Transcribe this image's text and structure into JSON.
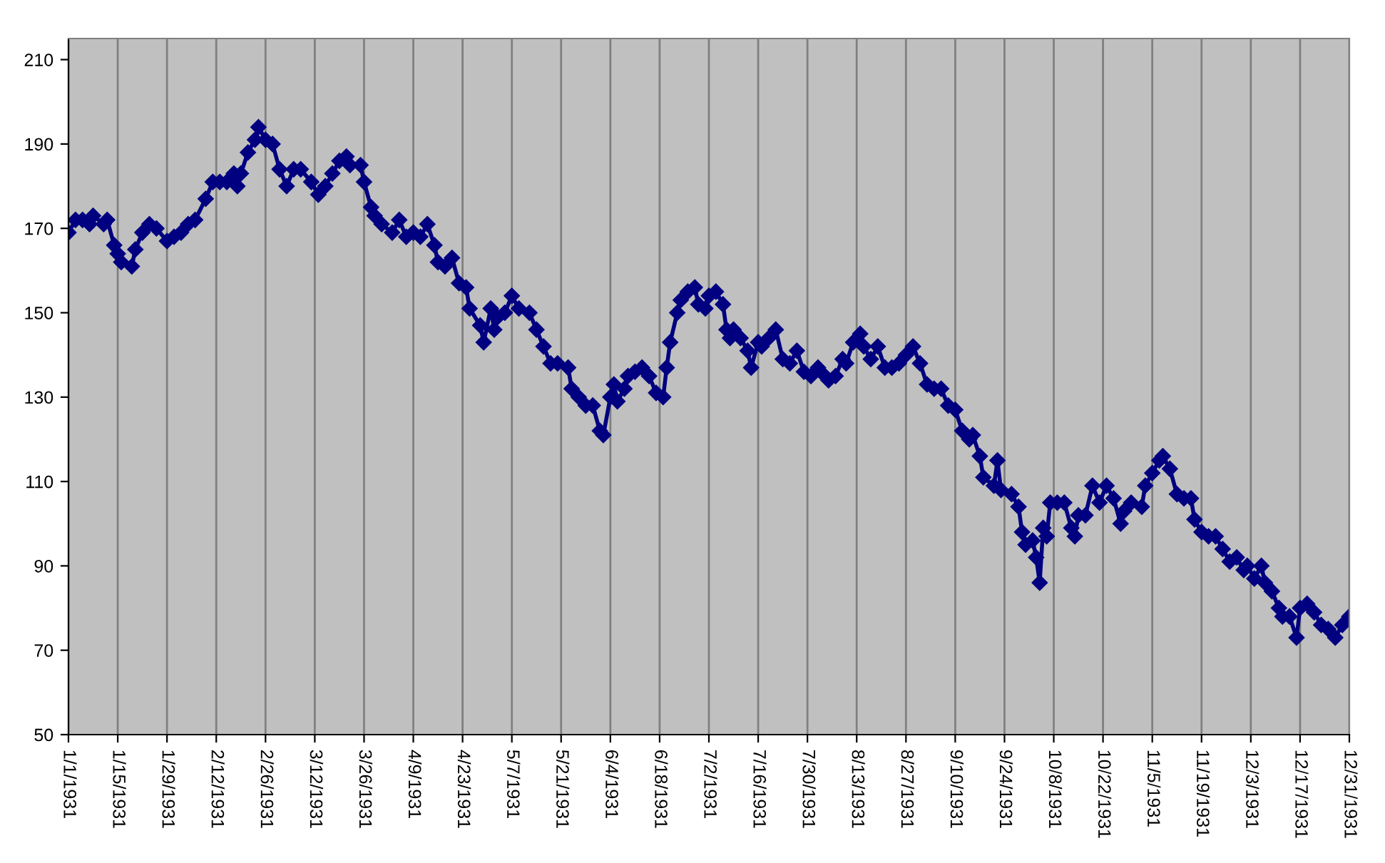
{
  "chart_data": {
    "type": "line",
    "x": [
      "1931-01-01",
      "1931-01-03",
      "1931-01-05",
      "1931-01-07",
      "1931-01-08",
      "1931-01-11",
      "1931-01-12",
      "1931-01-14",
      "1931-01-15",
      "1931-01-16",
      "1931-01-19",
      "1931-01-20",
      "1931-01-22",
      "1931-01-24",
      "1931-01-26",
      "1931-01-29",
      "1931-01-31",
      "1931-02-02",
      "1931-02-04",
      "1931-02-06",
      "1931-02-09",
      "1931-02-11",
      "1931-02-13",
      "1931-02-15",
      "1931-02-17",
      "1931-02-18",
      "1931-02-19",
      "1931-02-21",
      "1931-02-23",
      "1931-02-24",
      "1931-02-26",
      "1931-02-28",
      "1931-03-02",
      "1931-03-04",
      "1931-03-06",
      "1931-03-08",
      "1931-03-11",
      "1931-03-13",
      "1931-03-15",
      "1931-03-17",
      "1931-03-19",
      "1931-03-21",
      "1931-03-22",
      "1931-03-25",
      "1931-03-26",
      "1931-03-28",
      "1931-03-29",
      "1931-03-31",
      "1931-04-03",
      "1931-04-05",
      "1931-04-07",
      "1931-04-09",
      "1931-04-11",
      "1931-04-13",
      "1931-04-15",
      "1931-04-16",
      "1931-04-18",
      "1931-04-20",
      "1931-04-22",
      "1931-04-24",
      "1931-04-25",
      "1931-04-28",
      "1931-04-29",
      "1931-05-01",
      "1931-05-02",
      "1931-05-03",
      "1931-05-05",
      "1931-05-07",
      "1931-05-09",
      "1931-05-12",
      "1931-05-14",
      "1931-05-16",
      "1931-05-18",
      "1931-05-20",
      "1931-05-23",
      "1931-05-24",
      "1931-05-26",
      "1931-05-28",
      "1931-05-30",
      "1931-06-01",
      "1931-06-02",
      "1931-06-04",
      "1931-06-05",
      "1931-06-06",
      "1931-06-08",
      "1931-06-09",
      "1931-06-11",
      "1931-06-13",
      "1931-06-15",
      "1931-06-17",
      "1931-06-19",
      "1931-06-20",
      "1931-06-21",
      "1931-06-23",
      "1931-06-24",
      "1931-06-26",
      "1931-06-28",
      "1931-06-29",
      "1931-07-01",
      "1931-07-02",
      "1931-07-04",
      "1931-07-06",
      "1931-07-07",
      "1931-07-08",
      "1931-07-09",
      "1931-07-11",
      "1931-07-13",
      "1931-07-14",
      "1931-07-16",
      "1931-07-17",
      "1931-07-19",
      "1931-07-21",
      "1931-07-23",
      "1931-07-25",
      "1931-07-27",
      "1931-07-29",
      "1931-07-31",
      "1931-08-02",
      "1931-08-04",
      "1931-08-05",
      "1931-08-07",
      "1931-08-09",
      "1931-08-10",
      "1931-08-12",
      "1931-08-14",
      "1931-08-15",
      "1931-08-17",
      "1931-08-19",
      "1931-08-21",
      "1931-08-23",
      "1931-08-25",
      "1931-08-27",
      "1931-08-29",
      "1931-08-31",
      "1931-09-02",
      "1931-09-04",
      "1931-09-06",
      "1931-09-08",
      "1931-09-10",
      "1931-09-12",
      "1931-09-14",
      "1931-09-15",
      "1931-09-17",
      "1931-09-18",
      "1931-09-21",
      "1931-09-22",
      "1931-09-23",
      "1931-09-26",
      "1931-09-28",
      "1931-09-29",
      "1931-09-30",
      "1931-10-02",
      "1931-10-03",
      "1931-10-04",
      "1931-10-05",
      "1931-10-06",
      "1931-10-07",
      "1931-10-09",
      "1931-10-11",
      "1931-10-13",
      "1931-10-14",
      "1931-10-15",
      "1931-10-17",
      "1931-10-19",
      "1931-10-21",
      "1931-10-23",
      "1931-10-25",
      "1931-10-27",
      "1931-10-28",
      "1931-10-30",
      "1931-11-02",
      "1931-11-03",
      "1931-11-05",
      "1931-11-07",
      "1931-11-08",
      "1931-11-10",
      "1931-11-12",
      "1931-11-14",
      "1931-11-16",
      "1931-11-17",
      "1931-11-19",
      "1931-11-21",
      "1931-11-23",
      "1931-11-25",
      "1931-11-27",
      "1931-11-29",
      "1931-12-01",
      "1931-12-02",
      "1931-12-04",
      "1931-12-06",
      "1931-12-07",
      "1931-12-09",
      "1931-12-11",
      "1931-12-12",
      "1931-12-14",
      "1931-12-16",
      "1931-12-17",
      "1931-12-19",
      "1931-12-21",
      "1931-12-23",
      "1931-12-25",
      "1931-12-27",
      "1931-12-29",
      "1931-12-31"
    ],
    "series": [
      {
        "color": "#000080",
        "values": [
          169,
          172,
          172,
          171,
          173,
          171,
          172,
          166,
          164,
          162,
          161,
          165,
          169,
          171,
          170,
          167,
          168,
          169,
          171,
          172,
          177,
          181,
          181,
          181,
          183,
          180,
          183,
          188,
          191,
          194,
          191,
          190,
          184,
          180,
          184,
          184,
          181,
          178,
          180,
          183,
          186,
          187,
          185,
          185,
          181,
          175,
          173,
          171,
          169,
          172,
          168,
          169,
          168,
          171,
          166,
          162,
          161,
          163,
          157,
          156,
          151,
          147,
          143,
          151,
          146,
          149,
          150,
          154,
          151,
          150,
          146,
          142,
          138,
          138,
          137,
          132,
          130,
          128,
          128,
          122,
          121,
          130,
          133,
          129,
          132,
          135,
          136,
          137,
          135,
          131,
          130,
          137,
          143,
          150,
          153,
          155,
          156,
          152,
          151,
          154,
          155,
          152,
          146,
          144,
          146,
          144,
          141,
          137,
          143,
          142,
          144,
          146,
          139,
          138,
          141,
          136,
          135,
          137,
          135,
          134,
          135,
          139,
          138,
          143,
          145,
          142,
          139,
          142,
          137,
          137,
          138,
          140,
          142,
          138,
          133,
          132,
          132,
          128,
          127,
          122,
          120,
          121,
          116,
          111,
          109,
          115,
          108,
          107,
          104,
          98,
          95,
          96,
          92,
          86,
          99,
          97,
          105,
          105,
          105,
          99,
          97,
          102,
          102,
          109,
          105,
          109,
          106,
          100,
          103,
          105,
          104,
          109,
          112,
          115,
          116,
          113,
          107,
          106,
          106,
          101,
          98,
          97,
          97,
          94,
          91,
          92,
          89,
          90,
          87,
          90,
          86,
          84,
          80,
          78,
          78,
          73,
          80,
          81,
          79,
          76,
          75,
          73,
          76,
          78
        ]
      }
    ],
    "xlim": [
      "1931-01-01",
      "1931-12-31"
    ],
    "xticks": [
      {
        "value": "1931-01-01",
        "label": "1/1/1931"
      },
      {
        "value": "1931-01-15",
        "label": "1/15/1931"
      },
      {
        "value": "1931-01-29",
        "label": "1/29/1931"
      },
      {
        "value": "1931-02-12",
        "label": "2/12/1931"
      },
      {
        "value": "1931-02-26",
        "label": "2/26/1931"
      },
      {
        "value": "1931-03-12",
        "label": "3/12/1931"
      },
      {
        "value": "1931-03-26",
        "label": "3/26/1931"
      },
      {
        "value": "1931-04-09",
        "label": "4/9/1931"
      },
      {
        "value": "1931-04-23",
        "label": "4/23/1931"
      },
      {
        "value": "1931-05-07",
        "label": "5/7/1931"
      },
      {
        "value": "1931-05-21",
        "label": "5/21/1931"
      },
      {
        "value": "1931-06-04",
        "label": "6/4/1931"
      },
      {
        "value": "1931-06-18",
        "label": "6/18/1931"
      },
      {
        "value": "1931-07-02",
        "label": "7/2/1931"
      },
      {
        "value": "1931-07-16",
        "label": "7/16/1931"
      },
      {
        "value": "1931-07-30",
        "label": "7/30/1931"
      },
      {
        "value": "1931-08-13",
        "label": "8/13/1931"
      },
      {
        "value": "1931-08-27",
        "label": "8/27/1931"
      },
      {
        "value": "1931-09-10",
        "label": "9/10/1931"
      },
      {
        "value": "1931-09-24",
        "label": "9/24/1931"
      },
      {
        "value": "1931-10-08",
        "label": "10/8/1931"
      },
      {
        "value": "1931-10-22",
        "label": "10/22/1931"
      },
      {
        "value": "1931-11-05",
        "label": "11/5/1931"
      },
      {
        "value": "1931-11-19",
        "label": "11/19/1931"
      },
      {
        "value": "1931-12-03",
        "label": "12/3/1931"
      },
      {
        "value": "1931-12-17",
        "label": "12/17/1931"
      },
      {
        "value": "1931-12-31",
        "label": "12/31/1931"
      }
    ],
    "ylim": [
      50,
      215
    ],
    "yticks": [
      50,
      70,
      90,
      110,
      130,
      150,
      170,
      190,
      210
    ],
    "grid": "x",
    "marker": "diamond",
    "line_style": "solid"
  }
}
